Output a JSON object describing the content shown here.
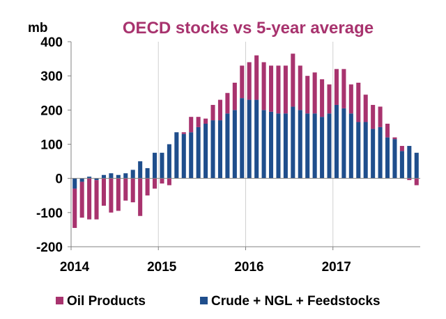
{
  "chart_data": {
    "type": "bar",
    "stacked": true,
    "title": "OECD stocks vs 5-year average",
    "ylabel": "mb",
    "ylim": [
      -200,
      400
    ],
    "yticks": [
      400,
      300,
      200,
      100,
      0,
      -100,
      -200
    ],
    "ytick_labels": [
      "400",
      "300",
      "200",
      "100",
      "0",
      "-100",
      "-200"
    ],
    "x_range": [
      2014.0,
      2018.0
    ],
    "xticks": [
      {
        "label": "2014",
        "value": 2014.0
      },
      {
        "label": "2015",
        "value": 2015.0
      },
      {
        "label": "2016",
        "value": 2016.0
      },
      {
        "label": "2017",
        "value": 2017.0
      }
    ],
    "grid": "vertical",
    "legend": "bottom",
    "series": [
      {
        "name": "Crude + NGL + Feedstocks",
        "color": "#1f4e8c",
        "values": [
          -30,
          -10,
          5,
          -5,
          10,
          15,
          10,
          15,
          25,
          50,
          30,
          75,
          75,
          100,
          135,
          130,
          135,
          150,
          160,
          170,
          170,
          190,
          200,
          235,
          230,
          230,
          200,
          195,
          190,
          190,
          210,
          200,
          190,
          190,
          180,
          190,
          215,
          205,
          190,
          165,
          165,
          145,
          150,
          120,
          115,
          80,
          95,
          75
        ]
      },
      {
        "name": "Oil Products",
        "color": "#a8336e",
        "values": [
          -115,
          -105,
          -120,
          -115,
          -80,
          -100,
          -95,
          -65,
          -70,
          -110,
          -50,
          -30,
          -15,
          -20,
          0,
          5,
          45,
          30,
          15,
          45,
          60,
          60,
          80,
          95,
          110,
          130,
          140,
          135,
          140,
          140,
          155,
          130,
          110,
          120,
          110,
          85,
          105,
          115,
          85,
          115,
          80,
          70,
          60,
          40,
          5,
          15,
          -5,
          -20
        ]
      }
    ]
  },
  "legend_items": [
    {
      "label": "Oil Products",
      "color": "#a8336e"
    },
    {
      "label": "Crude + NGL + Feedstocks",
      "color": "#1f4e8c"
    }
  ]
}
